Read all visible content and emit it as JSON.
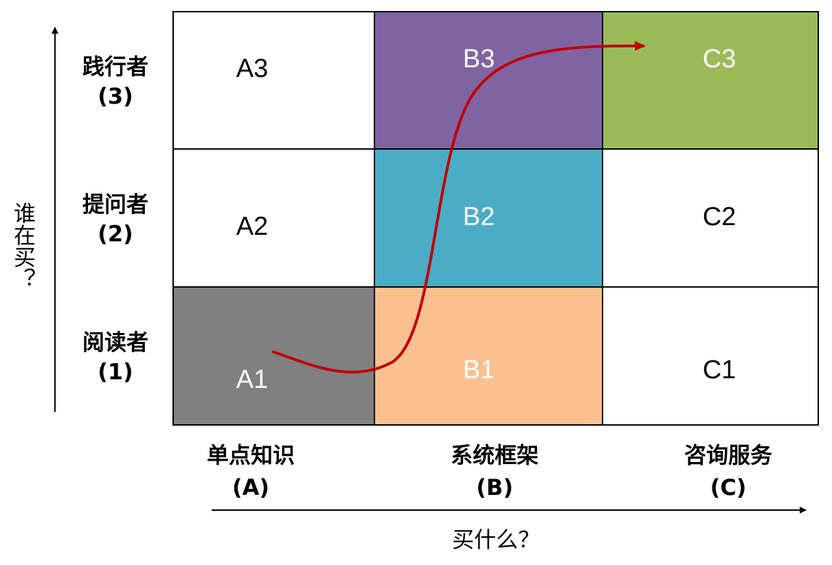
{
  "y_axis_title": "谁在买？",
  "x_axis_title": "买什么？",
  "rows": [
    {
      "label": "践行者",
      "index": "(3)",
      "cells": [
        {
          "text": "A3",
          "fill": "#ffffff",
          "text_color": "#000000"
        },
        {
          "text": "B3",
          "fill": "#8064a2",
          "text_color": "#ffffff"
        },
        {
          "text": "C3",
          "fill": "#9bbb59",
          "text_color": "#ffffff"
        }
      ]
    },
    {
      "label": "提问者",
      "index": "(2)",
      "cells": [
        {
          "text": "A2",
          "fill": "#ffffff",
          "text_color": "#000000"
        },
        {
          "text": "B2",
          "fill": "#4bacc6",
          "text_color": "#ffffff"
        },
        {
          "text": "C2",
          "fill": "#ffffff",
          "text_color": "#000000"
        }
      ]
    },
    {
      "label": "阅读者",
      "index": "(1)",
      "cells": [
        {
          "text": "A1",
          "fill": "#808080",
          "text_color": "#ffffff"
        },
        {
          "text": "B1",
          "fill": "#fac090",
          "text_color": "#ffffff"
        },
        {
          "text": "C1",
          "fill": "#ffffff",
          "text_color": "#000000"
        }
      ]
    }
  ],
  "columns": [
    {
      "label": "单点知识",
      "index": "(A)"
    },
    {
      "label": "系统框架",
      "index": "(B)"
    },
    {
      "label": "咨询服务",
      "index": "(C)"
    }
  ]
}
